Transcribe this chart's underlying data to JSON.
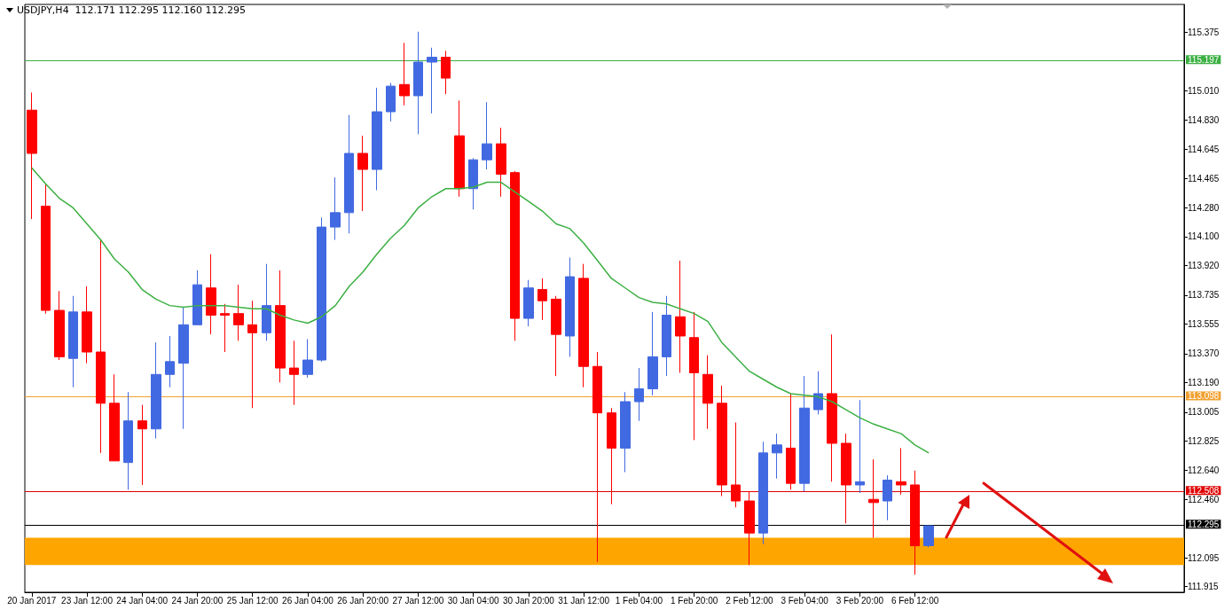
{
  "chart_data": {
    "type": "candlestick",
    "title": "USDJPY,H4  112.171 112.295 112.160 112.295",
    "categories": [
      "20 Jan 2017",
      null,
      null,
      null,
      "23 Jan 12:00",
      null,
      null,
      null,
      "24 Jan 04:00",
      null,
      null,
      null,
      "24 Jan 20:00",
      null,
      null,
      null,
      "25 Jan 12:00",
      null,
      null,
      null,
      "26 Jan 04:00",
      null,
      null,
      null,
      "26 Jan 20:00",
      null,
      null,
      null,
      "27 Jan 12:00",
      null,
      null,
      null,
      "30 Jan 04:00",
      null,
      null,
      null,
      "30 Jan 20:00",
      null,
      null,
      null,
      "31 Jan 12:00",
      null,
      null,
      null,
      "1 Feb 04:00",
      null,
      null,
      null,
      "1 Feb 20:00",
      null,
      null,
      null,
      "2 Feb 12:00",
      null,
      null,
      null,
      "3 Feb 04:00",
      null,
      null,
      null,
      "3 Feb 20:00",
      null,
      null,
      null,
      "6 Feb 12:00",
      null
    ],
    "ohlc": [
      [
        114.89,
        115.0,
        114.21,
        114.62
      ],
      [
        114.29,
        114.43,
        113.62,
        113.64
      ],
      [
        113.64,
        113.76,
        113.33,
        113.35
      ],
      [
        113.34,
        113.73,
        113.16,
        113.63
      ],
      [
        113.63,
        113.79,
        113.31,
        113.38
      ],
      [
        113.38,
        114.08,
        112.75,
        113.06
      ],
      [
        113.06,
        113.24,
        112.7,
        112.7
      ],
      [
        112.69,
        113.13,
        112.52,
        112.95
      ],
      [
        112.95,
        113.05,
        112.55,
        112.9
      ],
      [
        112.9,
        113.44,
        112.84,
        113.24
      ],
      [
        113.24,
        113.48,
        113.16,
        113.32
      ],
      [
        113.31,
        113.66,
        112.9,
        113.55
      ],
      [
        113.55,
        113.89,
        113.55,
        113.8
      ],
      [
        113.78,
        113.99,
        113.49,
        113.61
      ],
      [
        113.62,
        113.68,
        113.38,
        113.61
      ],
      [
        113.62,
        113.8,
        113.45,
        113.55
      ],
      [
        113.55,
        113.7,
        113.03,
        113.5
      ],
      [
        113.5,
        113.93,
        113.45,
        113.67
      ],
      [
        113.67,
        113.89,
        113.19,
        113.28
      ],
      [
        113.28,
        113.45,
        113.05,
        113.24
      ],
      [
        113.24,
        113.46,
        113.22,
        113.33
      ],
      [
        113.33,
        114.22,
        113.32,
        114.16
      ],
      [
        114.16,
        114.47,
        114.08,
        114.25
      ],
      [
        114.25,
        114.86,
        114.12,
        114.62
      ],
      [
        114.62,
        114.73,
        114.26,
        114.52
      ],
      [
        114.52,
        115.03,
        114.39,
        114.88
      ],
      [
        114.88,
        115.06,
        114.82,
        115.04
      ],
      [
        115.05,
        115.31,
        114.92,
        114.98
      ],
      [
        114.98,
        115.38,
        114.74,
        115.19
      ],
      [
        115.19,
        115.28,
        114.87,
        115.22
      ],
      [
        115.22,
        115.26,
        114.99,
        115.09
      ],
      [
        114.73,
        114.95,
        114.35,
        114.4
      ],
      [
        114.4,
        114.59,
        114.27,
        114.58
      ],
      [
        114.58,
        114.94,
        114.52,
        114.68
      ],
      [
        114.68,
        114.78,
        114.35,
        114.49
      ],
      [
        114.5,
        114.51,
        113.45,
        113.59
      ],
      [
        113.59,
        113.83,
        113.54,
        113.78
      ],
      [
        113.77,
        113.84,
        113.58,
        113.7
      ],
      [
        113.71,
        113.73,
        113.23,
        113.49
      ],
      [
        113.48,
        113.97,
        113.35,
        113.85
      ],
      [
        113.84,
        113.93,
        113.16,
        113.29
      ],
      [
        113.29,
        113.38,
        112.07,
        113.0
      ],
      [
        113.0,
        113.03,
        112.43,
        112.78
      ],
      [
        112.78,
        113.13,
        112.63,
        113.07
      ],
      [
        113.07,
        113.28,
        112.95,
        113.15
      ],
      [
        113.15,
        113.63,
        113.11,
        113.35
      ],
      [
        113.35,
        113.73,
        113.23,
        113.61
      ],
      [
        113.6,
        113.95,
        113.25,
        113.48
      ],
      [
        113.47,
        113.63,
        112.83,
        113.25
      ],
      [
        113.24,
        113.36,
        112.9,
        113.06
      ],
      [
        113.06,
        113.17,
        112.48,
        112.55
      ],
      [
        112.55,
        112.94,
        112.41,
        112.45
      ],
      [
        112.45,
        112.51,
        112.05,
        112.25
      ],
      [
        112.25,
        112.82,
        112.18,
        112.75
      ],
      [
        112.75,
        112.87,
        112.59,
        112.8
      ],
      [
        112.78,
        113.12,
        112.52,
        112.56
      ],
      [
        112.56,
        113.23,
        112.51,
        113.03
      ],
      [
        113.02,
        113.26,
        112.99,
        113.12
      ],
      [
        113.12,
        113.49,
        112.57,
        112.81
      ],
      [
        112.81,
        112.87,
        112.31,
        112.55
      ],
      [
        112.55,
        113.08,
        112.5,
        112.57
      ],
      [
        112.46,
        112.71,
        112.22,
        112.44
      ],
      [
        112.45,
        112.61,
        112.33,
        112.58
      ],
      [
        112.57,
        112.78,
        112.49,
        112.55
      ],
      [
        112.55,
        112.64,
        111.99,
        112.17
      ],
      [
        112.171,
        112.295,
        112.16,
        112.295
      ]
    ],
    "colors": [
      "#ff0000",
      "#ff0000",
      "#ff0000",
      "#4169e1",
      "#ff0000",
      "#ff0000",
      "#ff0000",
      "#4169e1",
      "#ff0000",
      "#4169e1",
      "#4169e1",
      "#4169e1",
      "#4169e1",
      "#ff0000",
      "#ff0000",
      "#ff0000",
      "#ff0000",
      "#4169e1",
      "#ff0000",
      "#ff0000",
      "#4169e1",
      "#4169e1",
      "#4169e1",
      "#4169e1",
      "#ff0000",
      "#4169e1",
      "#4169e1",
      "#ff0000",
      "#4169e1",
      "#4169e1",
      "#ff0000",
      "#ff0000",
      "#4169e1",
      "#4169e1",
      "#ff0000",
      "#ff0000",
      "#4169e1",
      "#ff0000",
      "#ff0000",
      "#4169e1",
      "#ff0000",
      "#ff0000",
      "#ff0000",
      "#4169e1",
      "#4169e1",
      "#4169e1",
      "#4169e1",
      "#ff0000",
      "#ff0000",
      "#ff0000",
      "#ff0000",
      "#ff0000",
      "#ff0000",
      "#4169e1",
      "#4169e1",
      "#ff0000",
      "#4169e1",
      "#4169e1",
      "#ff0000",
      "#ff0000",
      "#4169e1",
      "#ff0000",
      "#4169e1",
      "#ff0000",
      "#ff0000",
      "#4169e1"
    ],
    "series": [
      {
        "type": "line",
        "color": "#3cb043",
        "values": [
          114.53,
          114.43,
          114.34,
          114.28,
          114.18,
          114.08,
          113.96,
          113.88,
          113.77,
          113.71,
          113.67,
          113.66,
          113.67,
          113.67,
          113.67,
          113.66,
          113.65,
          113.65,
          113.61,
          113.58,
          113.56,
          113.6,
          113.67,
          113.79,
          113.88,
          113.99,
          114.09,
          114.17,
          114.28,
          114.35,
          114.4,
          114.4,
          114.41,
          114.44,
          114.44,
          114.38,
          114.32,
          114.26,
          114.18,
          114.15,
          114.06,
          113.95,
          113.84,
          113.78,
          113.72,
          113.69,
          113.68,
          113.65,
          113.62,
          113.57,
          113.44,
          113.35,
          113.26,
          113.21,
          113.16,
          113.12,
          113.11,
          113.1,
          113.07,
          113.02,
          112.97,
          112.93,
          112.9,
          112.87,
          112.8,
          112.75
        ]
      }
    ],
    "ylim": [
      111.88,
      115.55
    ],
    "yticks": [
      115.375,
      {
        "value": 115.01,
        "label": "115.010"
      },
      {
        "value": 114.83,
        "label": "114.830"
      },
      114.645,
      114.465,
      {
        "value": 114.28,
        "label": "114.280"
      },
      {
        "value": 114.1,
        "label": "114.100"
      },
      {
        "value": 113.92,
        "label": "113.920"
      },
      113.735,
      113.555,
      {
        "value": 113.37,
        "label": "113.370"
      },
      {
        "value": 113.19,
        "label": "113.190"
      },
      113.005,
      112.825,
      {
        "value": 112.64,
        "label": "112.640"
      },
      {
        "value": 112.46,
        "label": "112.460"
      },
      112.095,
      111.915
    ],
    "ref_lines": [
      {
        "axis": "y",
        "value": 115.197,
        "label": "115.197",
        "color": "#3cb043"
      },
      {
        "axis": "y",
        "value": 113.098,
        "label": "113.098",
        "color": "#f0a030"
      },
      {
        "axis": "y",
        "value": 112.508,
        "label": "112.508",
        "color": "#e00000"
      },
      {
        "axis": "y",
        "value": 112.295,
        "label": "112.295",
        "color": "#000000"
      }
    ],
    "bands": [
      {
        "axis": "y",
        "from": 112.05,
        "to": 112.22,
        "color": "#ffa500"
      }
    ]
  }
}
